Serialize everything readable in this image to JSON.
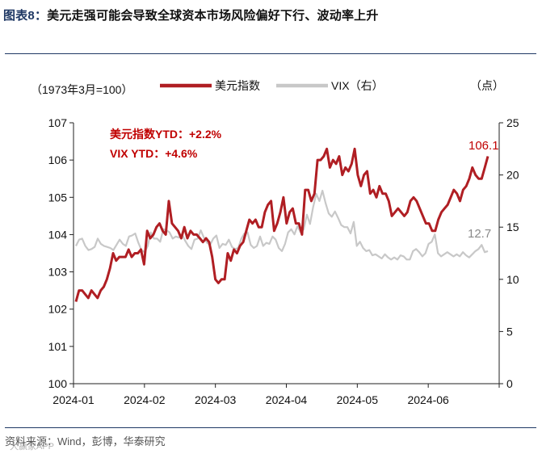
{
  "header": {
    "label": "图表8：",
    "title": "美元走强可能会导致全球资本市场风险偏好下行、波动率上升"
  },
  "footer": {
    "source": "资料来源：Wind，彭博，华泰研究",
    "watermark": "大赢家APP"
  },
  "chart_data": {
    "type": "line",
    "title": "美元走强可能会导致全球资本市场风险偏好下行、波动率上升",
    "left_axis_note": "（1973年3月=100）",
    "right_axis_note": "（点）",
    "ylim_left": [
      100,
      107
    ],
    "ylim_right": [
      0,
      25
    ],
    "yticks_left": [
      "100",
      "101",
      "102",
      "103",
      "104",
      "105",
      "106",
      "107"
    ],
    "yticks_right": [
      "0",
      "5",
      "10",
      "15",
      "20",
      "25"
    ],
    "xticks": [
      "2024-01",
      "2024-02",
      "2024-03",
      "2024-04",
      "2024-05",
      "2024-06"
    ],
    "annotations": [
      {
        "text": "美元指数YTD：+2.2%",
        "color": "#c00000"
      },
      {
        "text": "VIX YTD：+4.6%",
        "color": "#c00000"
      }
    ],
    "end_labels": {
      "dxy": "106.1",
      "vix": "12.7"
    },
    "colors": {
      "dxy": "#b01e23",
      "vix": "#c8c8c8"
    },
    "series": [
      {
        "name": "美元指数",
        "axis": "left",
        "values": [
          102.2,
          102.5,
          102.5,
          102.4,
          102.3,
          102.5,
          102.4,
          102.3,
          102.5,
          102.6,
          102.8,
          103.1,
          103.5,
          103.3,
          103.4,
          103.4,
          103.4,
          103.6,
          103.4,
          103.5,
          103.5,
          103.6,
          103.2,
          104.1,
          103.9,
          104.0,
          104.2,
          104.3,
          104.1,
          104.0,
          104.9,
          104.3,
          104.2,
          104.1,
          103.9,
          104.2,
          103.9,
          104.1,
          104.0,
          104.0,
          103.9,
          103.8,
          103.9,
          103.8,
          103.4,
          102.8,
          102.7,
          102.8,
          102.8,
          103.5,
          103.3,
          103.6,
          103.5,
          103.7,
          103.8,
          104.1,
          104.4,
          104.3,
          104.4,
          104.2,
          104.2,
          104.6,
          104.8,
          104.9,
          104.1,
          104.3,
          104.6,
          105.0,
          104.3,
          104.6,
          104.7,
          104.3,
          104.3,
          104.0,
          105.2,
          105.2,
          104.9,
          105.1,
          106.0,
          106.0,
          106.1,
          106.3,
          105.8,
          106.0,
          105.9,
          106.1,
          105.6,
          105.8,
          105.7,
          105.9,
          106.3,
          105.6,
          105.3,
          105.6,
          105.7,
          105.1,
          105.2,
          105.0,
          105.3,
          105.1,
          105.1,
          104.9,
          104.5,
          104.6,
          104.7,
          104.6,
          104.5,
          104.6,
          104.9,
          105.0,
          104.9,
          104.7,
          104.5,
          104.3,
          104.3,
          104.1,
          104.1,
          104.4,
          104.6,
          104.7,
          104.8,
          105.0,
          105.2,
          105.1,
          104.9,
          105.2,
          105.3,
          105.5,
          105.8,
          105.6,
          105.5,
          105.5,
          105.8,
          106.1
        ]
      },
      {
        "name": "VIX（右）",
        "axis": "right",
        "values": [
          13.2,
          13.8,
          13.9,
          13.2,
          12.8,
          12.9,
          13.1,
          13.9,
          13.4,
          13.2,
          13.1,
          13.0,
          12.8,
          13.3,
          13.8,
          13.4,
          13.2,
          14.1,
          14.2,
          14.4,
          13.5,
          12.8,
          12.6,
          13.2,
          14.5,
          13.9,
          13.9,
          13.6,
          14.8,
          14.7,
          14.5,
          13.9,
          14.1,
          14.0,
          14.3,
          13.7,
          13.2,
          12.9,
          13.8,
          13.9,
          14.7,
          14.0,
          13.5,
          13.3,
          13.9,
          14.2,
          13.0,
          13.4,
          13.3,
          13.8,
          13.1,
          12.9,
          13.0,
          13.9,
          14.4,
          14.5,
          13.3,
          13.0,
          13.2,
          14.1,
          13.2,
          13.5,
          13.4,
          14.1,
          13.8,
          13.0,
          12.7,
          13.4,
          14.5,
          14.8,
          14.3,
          15.1,
          14.5,
          14.8,
          16.2,
          15.3,
          16.9,
          18.2,
          17.5,
          18.5,
          17.3,
          16.3,
          16.0,
          16.5,
          15.9,
          15.2,
          15.0,
          15.0,
          14.4,
          15.5,
          13.2,
          13.6,
          13.0,
          12.7,
          12.8,
          12.3,
          12.4,
          12.2,
          12.0,
          12.4,
          12.1,
          11.9,
          12.1,
          11.9,
          12.3,
          12.2,
          11.9,
          11.9,
          12.7,
          12.9,
          12.6,
          12.2,
          12.5,
          13.4,
          13.6,
          14.3,
          12.5,
          12.2,
          12.4,
          12.6,
          12.4,
          12.2,
          12.4,
          12.2,
          12.6,
          12.3,
          12.1,
          12.4,
          12.7,
          12.9,
          13.3,
          12.6,
          12.7
        ]
      }
    ]
  }
}
